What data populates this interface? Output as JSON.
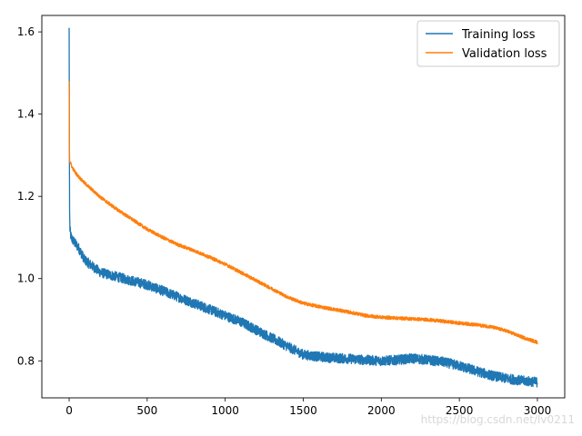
{
  "chart_data": {
    "type": "line",
    "title": "",
    "xlabel": "",
    "ylabel": "",
    "xlim": [
      -175,
      3175
    ],
    "ylim": [
      0.71,
      1.64
    ],
    "x_ticks": [
      0,
      500,
      1000,
      1500,
      2000,
      2500,
      3000
    ],
    "y_ticks": [
      0.8,
      1.0,
      1.2,
      1.4,
      1.6
    ],
    "x_tick_labels": [
      "0",
      "500",
      "1000",
      "1500",
      "2000",
      "2500",
      "3000"
    ],
    "y_tick_labels": [
      "0.8",
      "1.0",
      "1.2",
      "1.4",
      "1.6"
    ],
    "grid": false,
    "legend_position": "top-right",
    "noise_amplitude": {
      "Training loss": 0.012,
      "Validation loss": 0.004
    },
    "series": [
      {
        "name": "Training loss",
        "color": "#1f77b4",
        "x": [
          0,
          1,
          2,
          3,
          5,
          10,
          20,
          40,
          60,
          80,
          100,
          150,
          200,
          300,
          400,
          500,
          600,
          700,
          800,
          900,
          1000,
          1100,
          1200,
          1300,
          1400,
          1500,
          1600,
          1700,
          1800,
          1900,
          2000,
          2100,
          2200,
          2300,
          2400,
          2500,
          2600,
          2700,
          2800,
          2900,
          3000
        ],
        "values": [
          1.61,
          1.42,
          1.26,
          1.16,
          1.12,
          1.105,
          1.095,
          1.085,
          1.075,
          1.06,
          1.045,
          1.03,
          1.015,
          1.005,
          0.995,
          0.985,
          0.97,
          0.955,
          0.94,
          0.925,
          0.91,
          0.895,
          0.875,
          0.855,
          0.835,
          0.815,
          0.81,
          0.807,
          0.805,
          0.802,
          0.8,
          0.802,
          0.806,
          0.802,
          0.797,
          0.788,
          0.776,
          0.765,
          0.757,
          0.752,
          0.748
        ]
      },
      {
        "name": "Validation loss",
        "color": "#ff7f0e",
        "x": [
          0,
          1,
          2,
          3,
          5,
          10,
          20,
          40,
          60,
          80,
          100,
          150,
          200,
          300,
          400,
          500,
          600,
          700,
          800,
          900,
          1000,
          1100,
          1200,
          1300,
          1400,
          1500,
          1600,
          1700,
          1800,
          1900,
          2000,
          2100,
          2200,
          2300,
          2400,
          2500,
          2600,
          2700,
          2800,
          2900,
          3000
        ],
        "values": [
          1.48,
          1.38,
          1.31,
          1.29,
          1.285,
          1.28,
          1.27,
          1.258,
          1.248,
          1.24,
          1.232,
          1.215,
          1.198,
          1.17,
          1.145,
          1.12,
          1.1,
          1.082,
          1.068,
          1.052,
          1.035,
          1.015,
          0.995,
          0.975,
          0.955,
          0.94,
          0.932,
          0.925,
          0.918,
          0.91,
          0.906,
          0.904,
          0.902,
          0.9,
          0.896,
          0.892,
          0.888,
          0.883,
          0.873,
          0.858,
          0.845
        ]
      }
    ]
  },
  "watermark": "https://blog.csdn.net/lv0211"
}
